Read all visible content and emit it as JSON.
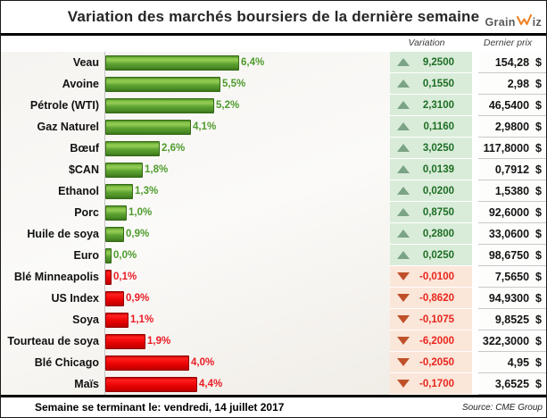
{
  "title": "Variation des marchés boursiers de la dernière semaine",
  "logo": {
    "name": "GrainWiz",
    "part1": "Grain",
    "part2": "iz",
    "accent_color": "#f07f1e",
    "text_color": "#58595b"
  },
  "columns": {
    "variation": "Variation",
    "price": "Dernier prix"
  },
  "currency": "$",
  "rows": [
    {
      "label": "Veau",
      "pct": 6.4,
      "pct_label": "6,4%",
      "dir": "up",
      "variation": "9,2500",
      "price": "154,28"
    },
    {
      "label": "Avoine",
      "pct": 5.5,
      "pct_label": "5,5%",
      "dir": "up",
      "variation": "0,1550",
      "price": "2,98"
    },
    {
      "label": "Pétrole (WTI)",
      "pct": 5.2,
      "pct_label": "5,2%",
      "dir": "up",
      "variation": "2,3100",
      "price": "46,5400"
    },
    {
      "label": "Gaz Naturel",
      "pct": 4.1,
      "pct_label": "4,1%",
      "dir": "up",
      "variation": "0,1160",
      "price": "2,9800"
    },
    {
      "label": "Bœuf",
      "pct": 2.6,
      "pct_label": "2,6%",
      "dir": "up",
      "variation": "3,0250",
      "price": "117,8000"
    },
    {
      "label": "$CAN",
      "pct": 1.8,
      "pct_label": "1,8%",
      "dir": "up",
      "variation": "0,0139",
      "price": "0,7912"
    },
    {
      "label": "Ethanol",
      "pct": 1.3,
      "pct_label": "1,3%",
      "dir": "up",
      "variation": "0,0200",
      "price": "1,5380"
    },
    {
      "label": "Porc",
      "pct": 1.0,
      "pct_label": "1,0%",
      "dir": "up",
      "variation": "0,8750",
      "price": "92,6000"
    },
    {
      "label": "Huile de soya",
      "pct": 0.9,
      "pct_label": "0,9%",
      "dir": "up",
      "variation": "0,2800",
      "price": "33,0600"
    },
    {
      "label": "Euro",
      "pct": 0.0,
      "pct_label": "0,0%",
      "dir": "up",
      "variation": "0,0250",
      "price": "98,6750"
    },
    {
      "label": "Blé Minneapolis",
      "pct": 0.1,
      "pct_label": "0,1%",
      "dir": "down",
      "variation": "-0,0100",
      "price": "7,5650"
    },
    {
      "label": "US Index",
      "pct": 0.9,
      "pct_label": "0,9%",
      "dir": "down",
      "variation": "-0,8620",
      "price": "94,9300"
    },
    {
      "label": "Soya",
      "pct": 1.1,
      "pct_label": "1,1%",
      "dir": "down",
      "variation": "-0,1075",
      "price": "9,8525"
    },
    {
      "label": "Tourteau de soya",
      "pct": 1.9,
      "pct_label": "1,9%",
      "dir": "down",
      "variation": "-6,2000",
      "price": "322,3000"
    },
    {
      "label": "Blé Chicago",
      "pct": 4.0,
      "pct_label": "4,0%",
      "dir": "down",
      "variation": "-0,2050",
      "price": "4,95"
    },
    {
      "label": "Maïs",
      "pct": 4.4,
      "pct_label": "4,4%",
      "dir": "down",
      "variation": "-0,1700",
      "price": "3,6525"
    }
  ],
  "footer": {
    "week": "Semaine se terminant le: vendredi, 14 juillet 2017",
    "source": "Source: CME Group"
  },
  "colors": {
    "positive_bar": "#5ba130",
    "negative_bar": "#e00000",
    "positive_text": "#4e9b2d",
    "negative_text": "#ea1c25",
    "variation_up_bg": "#d9ecd9",
    "variation_down_bg": "#fbe6da",
    "up_icon": "#7ba386",
    "down_icon": "#bf5129"
  },
  "chart_data": {
    "type": "bar",
    "orientation": "horizontal",
    "title": "Variation des marchés boursiers de la dernière semaine",
    "categories": [
      "Veau",
      "Avoine",
      "Pétrole (WTI)",
      "Gaz Naturel",
      "Bœuf",
      "$CAN",
      "Ethanol",
      "Porc",
      "Huile de soya",
      "Euro",
      "Blé Minneapolis",
      "US Index",
      "Soya",
      "Tourteau de soya",
      "Blé Chicago",
      "Maïs"
    ],
    "values_pct": [
      6.4,
      5.5,
      5.2,
      4.1,
      2.6,
      1.8,
      1.3,
      1.0,
      0.9,
      0.0,
      -0.1,
      -0.9,
      -1.1,
      -1.9,
      -4.0,
      -4.4
    ],
    "value_labels": [
      "6,4%",
      "5,5%",
      "5,2%",
      "4,1%",
      "2,6%",
      "1,8%",
      "1,3%",
      "1,0%",
      "0,9%",
      "0,0%",
      "0,1%",
      "0,9%",
      "1,1%",
      "1,9%",
      "4,0%",
      "4,4%"
    ],
    "series": [
      {
        "name": "Variation",
        "values": [
          9.25,
          0.155,
          2.31,
          0.116,
          3.025,
          0.0139,
          0.02,
          0.875,
          0.28,
          0.025,
          -0.01,
          -0.862,
          -0.1075,
          -6.2,
          -0.205,
          -0.17
        ]
      },
      {
        "name": "Dernier prix",
        "values": [
          154.28,
          2.98,
          46.54,
          2.98,
          117.8,
          0.7912,
          1.538,
          92.6,
          33.06,
          98.675,
          7.565,
          94.93,
          9.8525,
          322.3,
          4.95,
          3.6525
        ]
      }
    ],
    "xlabel": "",
    "ylabel": "",
    "xlim": [
      0,
      6.7
    ],
    "grid": false,
    "legend_position": "none",
    "color_rule": "green bars = hausse, red bars = baisse"
  }
}
